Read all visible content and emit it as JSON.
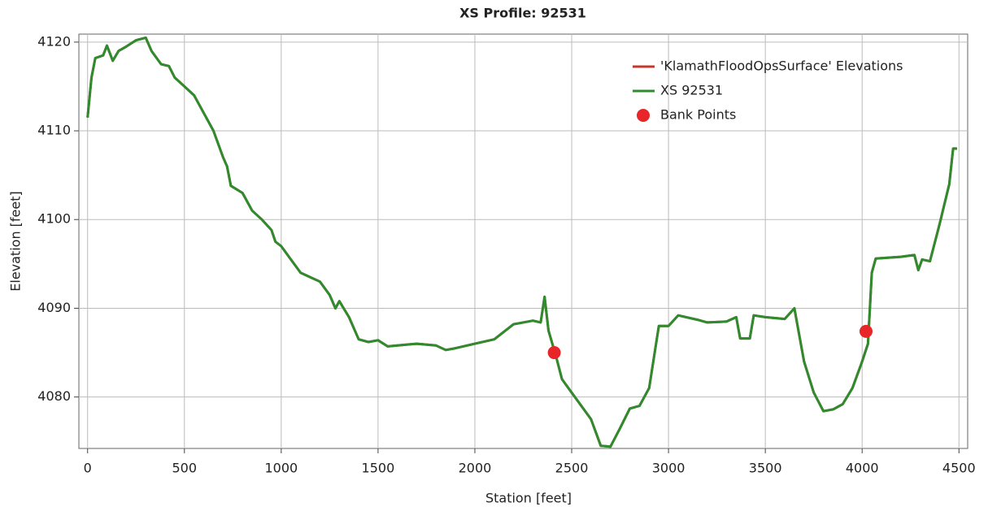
{
  "chart_data": {
    "type": "line",
    "title": "XS Profile: 92531",
    "x_label": "Station [feet]",
    "y_label": "Elevation [feet]",
    "x": [
      0,
      20,
      40,
      80,
      100,
      130,
      160,
      200,
      250,
      300,
      330,
      380,
      420,
      450,
      500,
      550,
      600,
      650,
      700,
      720,
      740,
      800,
      850,
      900,
      950,
      970,
      1000,
      1050,
      1100,
      1150,
      1200,
      1250,
      1280,
      1300,
      1350,
      1400,
      1450,
      1500,
      1550,
      1600,
      1700,
      1800,
      1850,
      1900,
      2000,
      2100,
      2200,
      2300,
      2340,
      2360,
      2380,
      2420,
      2450,
      2500,
      2600,
      2650,
      2700,
      2750,
      2800,
      2850,
      2900,
      2950,
      3000,
      3050,
      3150,
      3200,
      3300,
      3350,
      3370,
      3420,
      3440,
      3500,
      3600,
      3650,
      3700,
      3750,
      3800,
      3850,
      3900,
      3950,
      4000,
      4030,
      4050,
      4070,
      4200,
      4270,
      4290,
      4310,
      4350,
      4400,
      4450,
      4470,
      4490
    ],
    "series": [
      {
        "name": "'KlamathFloodOpsSurface' Elevations",
        "color": "#c0392b",
        "values": [
          4111.5,
          4116,
          4118.2,
          4118.5,
          4119.6,
          4117.9,
          4119,
          4119.5,
          4120.2,
          4120.5,
          4119,
          4117.5,
          4117.3,
          4116,
          4115,
          4114,
          4112,
          4110,
          4107,
          4106,
          4103.8,
          4103,
          4101,
          4100,
          4098.8,
          4097.5,
          4097,
          4095.5,
          4094,
          4093.5,
          4093,
          4091.5,
          4090,
          4090.8,
          4089,
          4086.5,
          4086.2,
          4086.4,
          4085.7,
          4085.8,
          4086,
          4085.8,
          4085.3,
          4085.5,
          4086,
          4086.5,
          4088.2,
          4088.6,
          4088.4,
          4091.3,
          4087.5,
          4084.5,
          4082,
          4080.5,
          4077.5,
          4074.5,
          4074.4,
          4076.5,
          4078.7,
          4079,
          4081,
          4088,
          4088,
          4089.2,
          4088.7,
          4088.4,
          4088.5,
          4089,
          4086.6,
          4086.6,
          4089.2,
          4089,
          4088.8,
          4090,
          4084,
          4080.5,
          4078.4,
          4078.6,
          4079.2,
          4081,
          4084,
          4086,
          4094,
          4095.6,
          4095.8,
          4096,
          4094.3,
          4095.5,
          4095.3,
          4099.5,
          4104,
          4108,
          4108
        ]
      },
      {
        "name": "XS 92531",
        "color": "#2e8b2e",
        "values": [
          4111.5,
          4116,
          4118.2,
          4118.5,
          4119.6,
          4117.9,
          4119,
          4119.5,
          4120.2,
          4120.5,
          4119,
          4117.5,
          4117.3,
          4116,
          4115,
          4114,
          4112,
          4110,
          4107,
          4106,
          4103.8,
          4103,
          4101,
          4100,
          4098.8,
          4097.5,
          4097,
          4095.5,
          4094,
          4093.5,
          4093,
          4091.5,
          4090,
          4090.8,
          4089,
          4086.5,
          4086.2,
          4086.4,
          4085.7,
          4085.8,
          4086,
          4085.8,
          4085.3,
          4085.5,
          4086,
          4086.5,
          4088.2,
          4088.6,
          4088.4,
          4091.3,
          4087.5,
          4084.5,
          4082,
          4080.5,
          4077.5,
          4074.5,
          4074.4,
          4076.5,
          4078.7,
          4079,
          4081,
          4088,
          4088,
          4089.2,
          4088.7,
          4088.4,
          4088.5,
          4089,
          4086.6,
          4086.6,
          4089.2,
          4089,
          4088.8,
          4090,
          4084,
          4080.5,
          4078.4,
          4078.6,
          4079.2,
          4081,
          4084,
          4086,
          4094,
          4095.6,
          4095.8,
          4096,
          4094.3,
          4095.5,
          4095.3,
          4099.5,
          4104,
          4108,
          4108
        ]
      }
    ],
    "points": {
      "name": "Bank Points",
      "color": "#e8262a",
      "x": [
        2410,
        4020
      ],
      "values": [
        4085,
        4087.4
      ]
    },
    "xlim": [
      -45,
      4545
    ],
    "ylim": [
      4074.2,
      4120.9
    ],
    "xticks": [
      0,
      500,
      1000,
      1500,
      2000,
      2500,
      3000,
      3500,
      4000,
      4500
    ],
    "yticks": [
      4080,
      4090,
      4100,
      4110,
      4120
    ],
    "grid": true,
    "legend": "upper right"
  }
}
